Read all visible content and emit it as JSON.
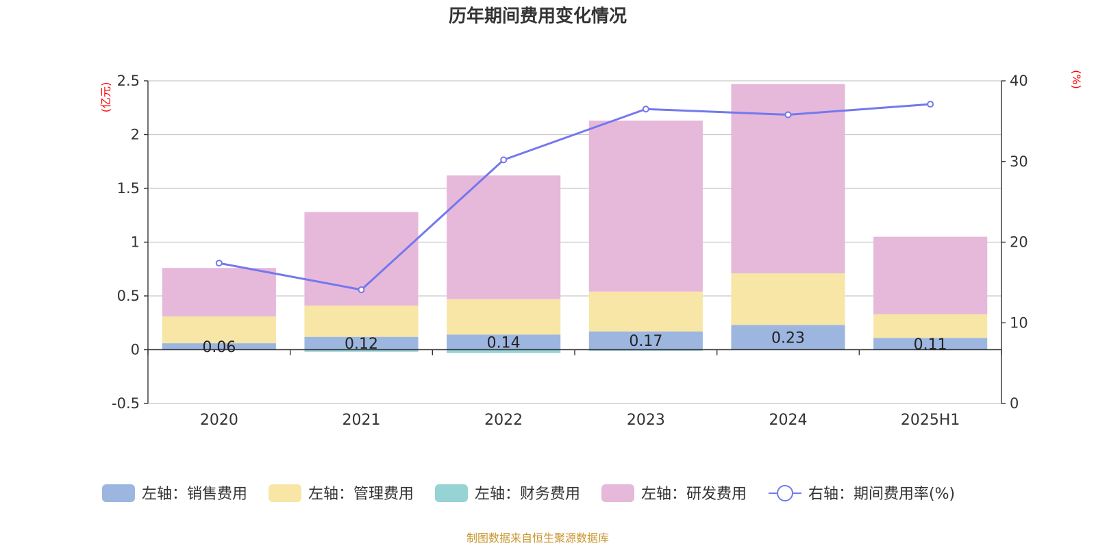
{
  "chart_data": {
    "type": "bar",
    "title": "历年期间费用变化情况",
    "categories": [
      "2020",
      "2021",
      "2022",
      "2023",
      "2024",
      "2025H1"
    ],
    "y_left": {
      "unit": "(亿元)",
      "ylim": [
        -0.5,
        2.5
      ],
      "ticks": [
        -0.5,
        0,
        0.5,
        1,
        1.5,
        2,
        2.5
      ],
      "tick_labels": [
        "-0.5",
        "0",
        "0.5",
        "1",
        "1.5",
        "2",
        "2.5"
      ]
    },
    "y_right": {
      "unit": "(%)",
      "ylim": [
        0,
        40
      ],
      "ticks": [
        0,
        10,
        20,
        30,
        40
      ],
      "tick_labels": [
        "0",
        "10",
        "20",
        "30",
        "40"
      ]
    },
    "stacked": true,
    "series": [
      {
        "name": "左轴：销售费用",
        "axis": "left",
        "type": "bar",
        "color": "#9db6e0",
        "values": [
          0.06,
          0.12,
          0.14,
          0.17,
          0.23,
          0.11
        ],
        "data_labels": [
          "0.06",
          "0.12",
          "0.14",
          "0.17",
          "0.23",
          "0.11"
        ]
      },
      {
        "name": "左轴：管理费用",
        "axis": "left",
        "type": "bar",
        "color": "#f7e6a6",
        "values": [
          0.25,
          0.29,
          0.33,
          0.37,
          0.48,
          0.22
        ]
      },
      {
        "name": "左轴：财务费用",
        "axis": "left",
        "type": "bar",
        "color": "#96d3d4",
        "values": [
          0.0,
          -0.02,
          -0.03,
          -0.01,
          0.0,
          0.0
        ]
      },
      {
        "name": "左轴：研发费用",
        "axis": "left",
        "type": "bar",
        "color": "#e6b8da",
        "values": [
          0.45,
          0.87,
          1.15,
          1.59,
          1.76,
          0.72
        ]
      },
      {
        "name": "右轴：期间费用率(%)",
        "axis": "right",
        "type": "line",
        "color": "#7378ee",
        "values": [
          17.4,
          14.1,
          30.2,
          36.5,
          35.8,
          37.1
        ]
      }
    ],
    "grid": true,
    "legend_position": "bottom"
  },
  "source_note": "制图数据来自恒生聚源数据库"
}
